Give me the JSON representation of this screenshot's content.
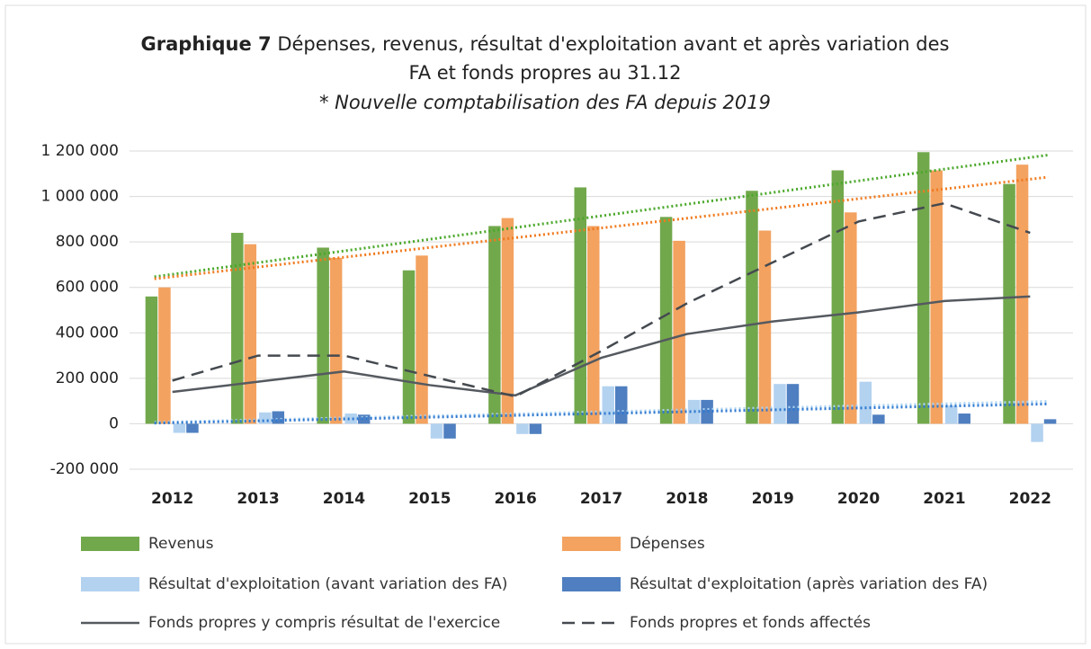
{
  "chart_data": {
    "type": "bar",
    "title_bold": "Graphique 7",
    "title_lines": [
      "Dépenses, revenus, résultat d'exploitation avant et après variation des",
      "FA et fonds propres au 31.12"
    ],
    "subtitle": "* Nouvelle comptabilisation des FA depuis 2019",
    "categories": [
      "2012",
      "2013",
      "2014",
      "2015",
      "2016",
      "2017",
      "2018",
      "2019",
      "2020",
      "2021",
      "2022"
    ],
    "series": [
      {
        "name": "Revenus",
        "type": "bar",
        "color": "#72a84c",
        "trendline": true,
        "trend_color": "#4aa82a",
        "values": [
          560000,
          840000,
          775000,
          675000,
          870000,
          1040000,
          910000,
          1025000,
          1115000,
          1195000,
          1055000
        ]
      },
      {
        "name": "Dépenses",
        "type": "bar",
        "color": "#f3a260",
        "trendline": true,
        "trend_color": "#f07a1e",
        "values": [
          600000,
          790000,
          730000,
          740000,
          905000,
          870000,
          805000,
          850000,
          930000,
          1115000,
          1140000
        ]
      },
      {
        "name": "Résultat d'exploitation (avant variation des FA)",
        "type": "bar",
        "color": "#b3d2f0",
        "trendline": true,
        "trend_color": "#a9d2f2",
        "values": [
          -40000,
          50000,
          45000,
          -65000,
          -45000,
          165000,
          105000,
          175000,
          185000,
          80000,
          -80000
        ]
      },
      {
        "name": "Résultat d'exploitation (après variation des FA)",
        "type": "bar",
        "color": "#4f7fc0",
        "trendline": true,
        "trend_color": "#2e78d0",
        "values": [
          -40000,
          55000,
          40000,
          -65000,
          -45000,
          165000,
          105000,
          175000,
          40000,
          45000,
          20000
        ]
      },
      {
        "name": "Fonds propres y compris résultat de l'exercice",
        "type": "line",
        "color": "#555a60",
        "dash": false,
        "values": [
          140000,
          185000,
          230000,
          170000,
          125000,
          290000,
          395000,
          450000,
          490000,
          540000,
          560000
        ]
      },
      {
        "name": "Fonds propres et fonds affectés",
        "type": "line",
        "color": "#454a50",
        "dash": true,
        "values": [
          190000,
          300000,
          300000,
          210000,
          120000,
          320000,
          530000,
          710000,
          890000,
          970000,
          840000
        ]
      }
    ],
    "ylim": [
      -200000,
      1200000
    ],
    "yticks": [
      {
        "value": -200000,
        "label": "-200 000"
      },
      0,
      {
        "value": 200000,
        "label": "200 000"
      },
      {
        "value": 400000,
        "label": "400 000"
      },
      {
        "value": 600000,
        "label": "600 000"
      },
      {
        "value": 800000,
        "label": "800 000"
      },
      {
        "value": 1000000,
        "label": "1 000 000"
      },
      {
        "value": 1200000,
        "label": "1 200 000"
      }
    ],
    "grid": true,
    "legend": "bottom"
  }
}
